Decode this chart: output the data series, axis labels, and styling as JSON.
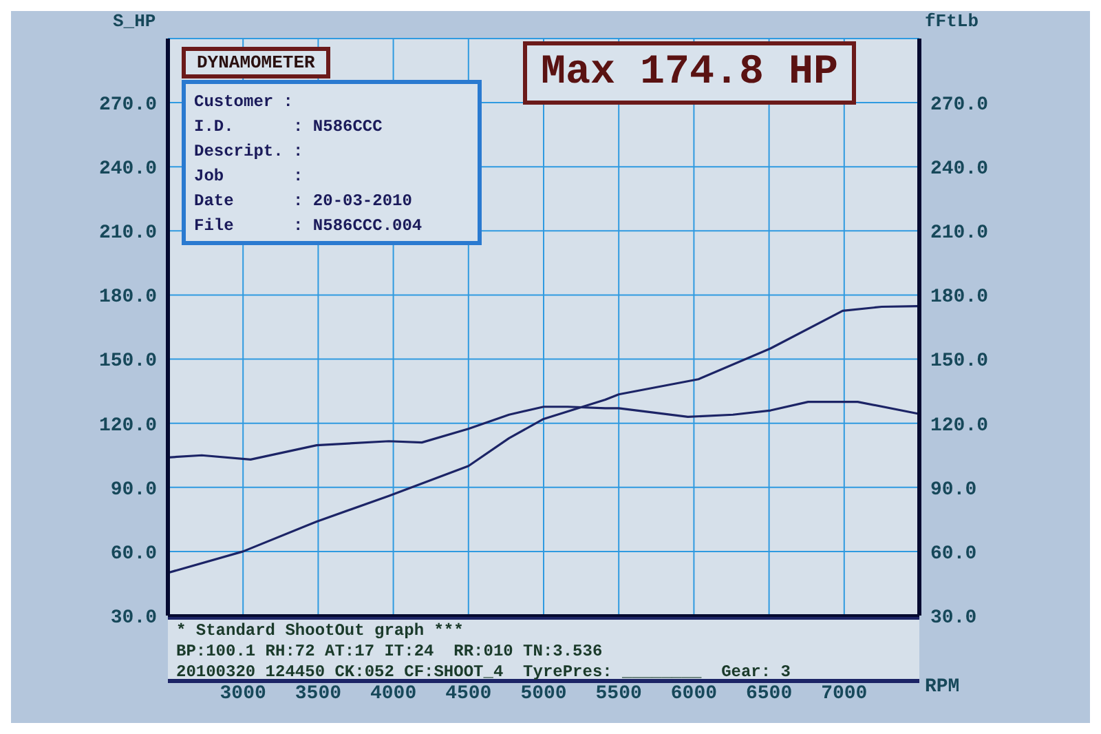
{
  "chart_data": {
    "type": "line",
    "title": "DYNAMOMETER",
    "xlabel": "RPM",
    "ylabel": "S_HP",
    "y2label": "fFtLb",
    "annotations": [
      "Customer :",
      "I.D.      : N586CCC",
      "Descript. :",
      "Job       :",
      "Date      : 20-03-2010",
      "File      : N586CCC.004",
      "Max 174.8 HP",
      "* Standard ShootOut graph ***",
      "BP:100.1 RH:72 AT:17 IT:24  RR:010 TN:3.536",
      "20100320 124450 CK:052 CF:SHOOT_4  TyrePres: ________  Gear: 3"
    ],
    "series": [
      {
        "color": "#1c2466",
        "x": [
          2500,
          3000,
          3490,
          3970,
          4500,
          4770,
          5000,
          5410,
          5500,
          6030,
          6510,
          6990,
          7250,
          7490
        ],
        "values": [
          50,
          60,
          74,
          86,
          100,
          113,
          122,
          131,
          133.5,
          140.6,
          155,
          172.6,
          174.5,
          174.8
        ]
      },
      {
        "color": "#1c2466",
        "x": [
          2500,
          2725,
          3050,
          3490,
          3970,
          4190,
          4500,
          4770,
          5000,
          5160,
          5410,
          5500,
          5960,
          6260,
          6510,
          6760,
          7090,
          7490
        ],
        "values": [
          104,
          105,
          103,
          109.7,
          111.6,
          111,
          117.4,
          124,
          127.7,
          127.7,
          127,
          127,
          123,
          124,
          126,
          130,
          130,
          124.5
        ]
      }
    ],
    "xlim": [
      2500,
      7500
    ],
    "xticks": [
      3000,
      3500,
      4000,
      4500,
      5000,
      5500,
      6000,
      6500,
      7000
    ],
    "ylim": [
      30,
      300
    ],
    "yticks": [
      {
        "value": 30,
        "label": "30.0"
      },
      {
        "value": 60,
        "label": "60.0"
      },
      {
        "value": 90,
        "label": "90.0"
      },
      {
        "value": 120,
        "label": "120.0"
      },
      {
        "value": 150,
        "label": "150.0"
      },
      {
        "value": 180,
        "label": "180.0"
      },
      {
        "value": 210,
        "label": "210.0"
      },
      {
        "value": 240,
        "label": "240.0"
      },
      {
        "value": 270,
        "label": "270.0"
      }
    ],
    "y2lim": [
      30,
      300
    ],
    "y2ticks": [
      {
        "value": 30,
        "label": "30.0"
      },
      {
        "value": 60,
        "label": "60.0"
      },
      {
        "value": 90,
        "label": "90.0"
      },
      {
        "value": 120,
        "label": "120.0"
      },
      {
        "value": 150,
        "label": "150.0"
      },
      {
        "value": 180,
        "label": "180.0"
      },
      {
        "value": 210,
        "label": "210.0"
      },
      {
        "value": 240,
        "label": "240.0"
      },
      {
        "value": 270,
        "label": "270.0"
      }
    ],
    "grid": true,
    "marker": "none",
    "line_style": "solid",
    "legend": false
  }
}
